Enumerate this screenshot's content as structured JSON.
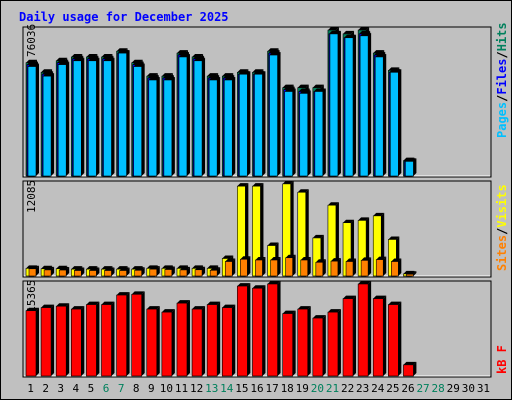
{
  "colors": {
    "background": "#c0c0c0",
    "hits": "#00805c",
    "files": "#0000ff",
    "pages": "#00c0ff",
    "visits": "#ffff00",
    "sites": "#ff8000",
    "kbytes": "#ff0000",
    "title": "#0000ff",
    "weekend_day": "#00805c",
    "weekday": "#000000"
  },
  "chart_data": {
    "type": "bar",
    "title": "Daily usage for December 2025",
    "categories": [
      "1",
      "2",
      "3",
      "4",
      "5",
      "6",
      "7",
      "8",
      "9",
      "10",
      "11",
      "12",
      "13",
      "14",
      "15",
      "16",
      "17",
      "18",
      "19",
      "20",
      "21",
      "22",
      "23",
      "24",
      "25",
      "26",
      "27",
      "28",
      "29",
      "30",
      "31"
    ],
    "weekend_days": [
      "6",
      "7",
      "13",
      "14",
      "20",
      "21",
      "27",
      "28"
    ],
    "panels": [
      {
        "name": "hits_files_pages",
        "ymax_label": "76036",
        "ymax": 76036,
        "legend": [
          {
            "label": "Pages",
            "color": "#00c0ff"
          },
          {
            "label": "/",
            "color": "#000000"
          },
          {
            "label": "Files",
            "color": "#0000ff"
          },
          {
            "label": "/",
            "color": "#000000"
          },
          {
            "label": "Hits",
            "color": "#00805c"
          }
        ],
        "series": [
          {
            "name": "Hits",
            "values": [
              59000,
              54000,
              60000,
              62000,
              62000,
              62000,
              65000,
              59000,
              52000,
              52000,
              64000,
              62000,
              52000,
              52000,
              54000,
              54000,
              65000,
              46000,
              46000,
              46000,
              76000,
              74000,
              76000,
              64000,
              55000,
              8000,
              0,
              0,
              0,
              0,
              0
            ]
          },
          {
            "name": "Files",
            "values": [
              58000,
              53000,
              59000,
              61000,
              61000,
              61000,
              64000,
              58000,
              51000,
              51000,
              63000,
              61000,
              51000,
              51000,
              53000,
              53000,
              64000,
              45000,
              44000,
              44000,
              74000,
              72000,
              74000,
              63000,
              54000,
              7600,
              0,
              0,
              0,
              0,
              0
            ]
          },
          {
            "name": "Pages",
            "values": [
              57000,
              52000,
              58000,
              60000,
              60000,
              60000,
              64000,
              57000,
              50000,
              50000,
              62000,
              60000,
              50000,
              50000,
              53000,
              53000,
              63000,
              44000,
              43000,
              44000,
              74000,
              72000,
              73000,
              62000,
              54000,
              7600,
              0,
              0,
              0,
              0,
              0
            ]
          }
        ]
      },
      {
        "name": "visits_sites",
        "ymax_label": "12085",
        "ymax": 12085,
        "legend": [
          {
            "label": "Sites",
            "color": "#ff8000"
          },
          {
            "label": "/",
            "color": "#000000"
          },
          {
            "label": "Visits",
            "color": "#ffff00"
          }
        ],
        "series": [
          {
            "name": "Visits",
            "values": [
              1000,
              950,
              950,
              900,
              900,
              900,
              900,
              900,
              1000,
              1000,
              1000,
              1000,
              1000,
              2300,
              11800,
              11800,
              4000,
              12100,
              11000,
              5000,
              9300,
              7000,
              7300,
              7900,
              4800,
              280,
              0,
              0,
              0,
              0,
              0
            ]
          },
          {
            "name": "Sites",
            "values": [
              950,
              800,
              780,
              720,
              720,
              720,
              720,
              750,
              900,
              850,
              800,
              820,
              750,
              1900,
              2200,
              2100,
              2100,
              2400,
              2100,
              1800,
              1950,
              1900,
              2050,
              2150,
              1900,
              230,
              0,
              0,
              0,
              0,
              0
            ]
          }
        ]
      },
      {
        "name": "kbytes",
        "ymax_label": "5115365",
        "ymax": 5115365,
        "legend": [
          {
            "label": "kB F",
            "color": "#ff0000"
          }
        ],
        "series": [
          {
            "name": "kB F",
            "values": [
              3630000,
              3800000,
              3880000,
              3720000,
              3970000,
              3970000,
              4500000,
              4540000,
              3720000,
              3550000,
              4050000,
              3720000,
              3970000,
              3800000,
              5000000,
              4880000,
              5115365,
              3470000,
              3720000,
              3220000,
              3550000,
              4300000,
              5115365,
              4300000,
              3970000,
              620000,
              0,
              0,
              0,
              0,
              0
            ]
          }
        ]
      }
    ]
  }
}
